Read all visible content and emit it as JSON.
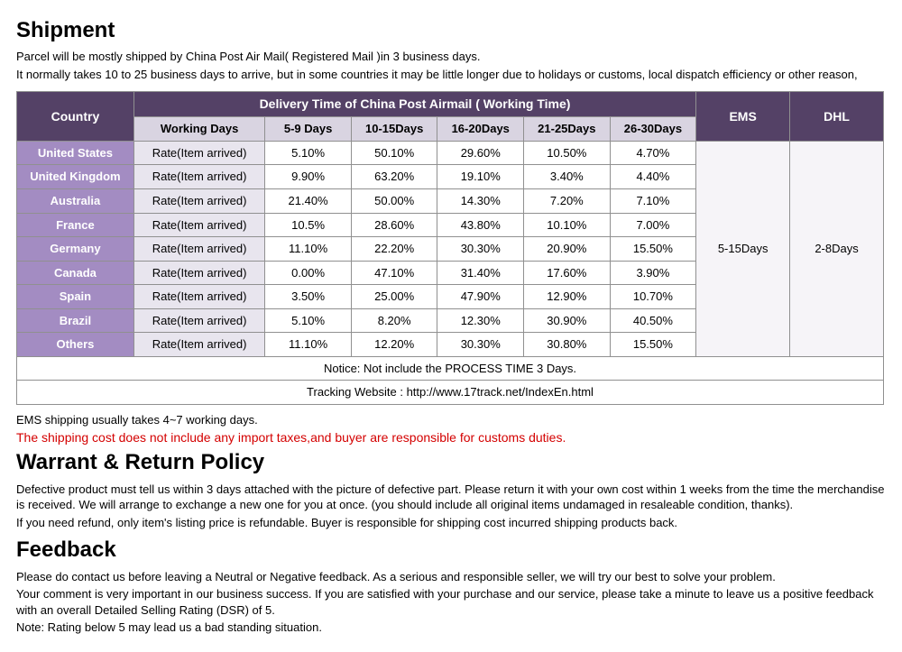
{
  "shipment": {
    "title": "Shipment",
    "line1": "Parcel will be mostly shipped by China Post Air Mail( Registered Mail )in 3 business days.",
    "line2": "It normally takes 10 to 25 business days to arrive, but in some countries it may be little longer due to holidays or customs, local dispatch efficiency or other reason,"
  },
  "table": {
    "header": {
      "country": "Country",
      "delivery_span": "Delivery Time of China Post Airmail ( Working Time)",
      "ems": "EMS",
      "dhl": "DHL"
    },
    "subheader": {
      "working_days": "Working Days",
      "d1": "5-9 Days",
      "d2": "10-15Days",
      "d3": "16-20Days",
      "d4": "21-25Days",
      "d5": "26-30Days"
    },
    "rate_label": "Rate(Item arrived)",
    "ems_value": "5-15Days",
    "dhl_value": "2-8Days",
    "countries": [
      {
        "name": "United States",
        "v": [
          "5.10%",
          "50.10%",
          "29.60%",
          "10.50%",
          "4.70%"
        ]
      },
      {
        "name": "United Kingdom",
        "v": [
          "9.90%",
          "63.20%",
          "19.10%",
          "3.40%",
          "4.40%"
        ]
      },
      {
        "name": "Australia",
        "v": [
          "21.40%",
          "50.00%",
          "14.30%",
          "7.20%",
          "7.10%"
        ]
      },
      {
        "name": "France",
        "v": [
          "10.5%",
          "28.60%",
          "43.80%",
          "10.10%",
          "7.00%"
        ]
      },
      {
        "name": "Germany",
        "v": [
          "11.10%",
          "22.20%",
          "30.30%",
          "20.90%",
          "15.50%"
        ]
      },
      {
        "name": "Canada",
        "v": [
          "0.00%",
          "47.10%",
          "31.40%",
          "17.60%",
          "3.90%"
        ]
      },
      {
        "name": "Spain",
        "v": [
          "3.50%",
          "25.00%",
          "47.90%",
          "12.90%",
          "10.70%"
        ]
      },
      {
        "name": "Brazil",
        "v": [
          "5.10%",
          "8.20%",
          "12.30%",
          "30.90%",
          "40.50%"
        ]
      },
      {
        "name": "Others",
        "v": [
          "11.10%",
          "12.20%",
          "30.30%",
          "30.80%",
          "15.50%"
        ]
      }
    ],
    "notice": "Notice: Not include the PROCESS TIME 3 Days.",
    "tracking": "Tracking Website : http://www.17track.net/IndexEn.html"
  },
  "post_table": {
    "ems_note": "EMS shipping usually takes 4~7 working days.",
    "red_note": "The shipping cost does not include any import taxes,and buyer are responsible for customs duties."
  },
  "warrant": {
    "title": "Warrant & Return Policy",
    "p1": "Defective product must tell us within 3 days attached with the picture of defective part. Please return it with your own cost within 1 weeks from the time the merchandise is received. We will arrange to exchange a new one for you at once. (you should include all original items undamaged in resaleable condition, thanks).",
    "p2": "If you need refund, only item's listing price is refundable. Buyer is responsible for shipping cost incurred shipping products back."
  },
  "feedback": {
    "title": "Feedback",
    "p1": "Please do contact us before leaving a Neutral or Negative feedback. As a serious and responsible seller, we will try our best to solve your problem.",
    "p2": "Your comment is very important in our business success. If you are satisfied with your purchase and our service, please take a minute to leave us a positive feedback with an overall Detailed Selling Rating (DSR) of 5.",
    "p3": "Note: Rating below 5 may lead us a bad standing situation."
  },
  "style": {
    "header_bg": "#544166",
    "sub_bg": "#d9d4e1",
    "country_bg": "#a38cc2",
    "rate_bg": "#e8e5ee",
    "border": "#909090",
    "red": "#d40000"
  }
}
